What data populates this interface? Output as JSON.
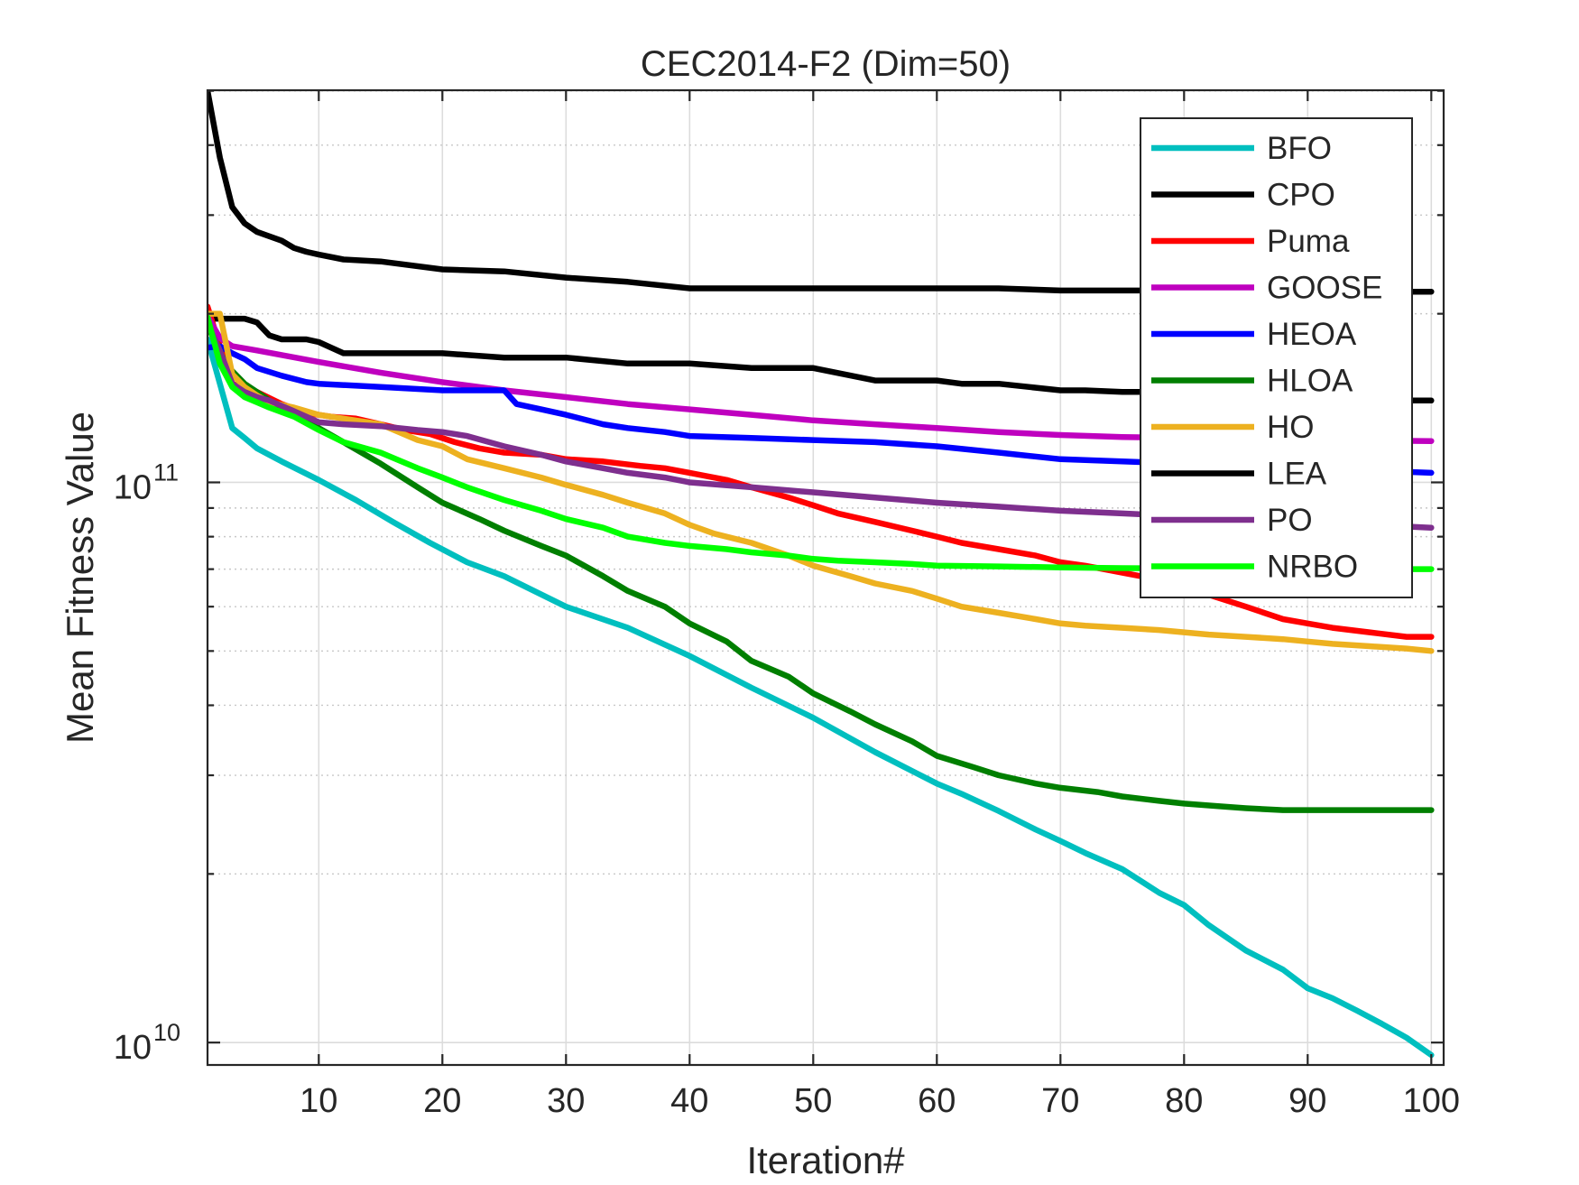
{
  "chart_data": {
    "type": "line",
    "title": "CEC2014-F2 (Dim=50)",
    "xlabel": "Iteration#",
    "ylabel": "Mean Fitness Value",
    "xscale": "linear",
    "yscale": "log",
    "xlim": [
      1,
      101
    ],
    "ylim_exp": [
      9.96,
      11.7
    ],
    "xticks": [
      10,
      20,
      30,
      40,
      50,
      60,
      70,
      80,
      90,
      100
    ],
    "xtick_labels": [
      "10",
      "20",
      "30",
      "40",
      "50",
      "60",
      "70",
      "80",
      "90",
      "100"
    ],
    "yticks_exp": [
      10,
      11
    ],
    "ytick_base": "10",
    "ytick_exponents": [
      "10",
      "11"
    ],
    "grid": true,
    "legend_position": "top-right",
    "series": [
      {
        "name": "BFO",
        "color": "#00bfbf",
        "x": [
          1,
          3,
          4,
          5,
          7,
          10,
          13,
          16,
          19,
          22,
          25,
          30,
          35,
          40,
          45,
          50,
          55,
          60,
          62,
          65,
          68,
          70,
          72,
          75,
          78,
          80,
          82,
          85,
          88,
          90,
          92,
          94,
          96,
          98,
          100
        ],
        "y": [
          180000000000,
          125000000000,
          120000000000,
          115000000000,
          109000000000,
          101000000000,
          93000000000,
          85000000000,
          78000000000,
          72000000000,
          68000000000,
          60000000000,
          55000000000,
          49000000000,
          43000000000,
          38000000000,
          33000000000,
          29000000000,
          27800000000,
          25900000000,
          24000000000,
          22900000000,
          21800000000,
          20400000000,
          18500000000,
          17600000000,
          16200000000,
          14600000000,
          13500000000,
          12500000000,
          12000000000,
          11400000000,
          10800000000,
          10200000000,
          9500000000
        ]
      },
      {
        "name": "CPO",
        "color": "#000000",
        "x": [
          1,
          2,
          3,
          4,
          5,
          6,
          7,
          8,
          9,
          10,
          12,
          15,
          20,
          25,
          30,
          35,
          40,
          45,
          50,
          55,
          60,
          62,
          65,
          70,
          72,
          75,
          80,
          85,
          90,
          95,
          98,
          100
        ],
        "y": [
          196000000000,
          196000000000,
          196000000000,
          196000000000,
          193000000000,
          183000000000,
          180000000000,
          180000000000,
          180000000000,
          178000000000,
          170000000000,
          170000000000,
          170000000000,
          167000000000,
          167000000000,
          163000000000,
          163000000000,
          160000000000,
          160000000000,
          152000000000,
          152000000000,
          150000000000,
          150000000000,
          146000000000,
          146000000000,
          145000000000,
          145000000000,
          145000000000,
          140000000000,
          140000000000,
          140000000000,
          140000000000
        ]
      },
      {
        "name": "Puma",
        "color": "#ff0000",
        "x": [
          1,
          2,
          3,
          4,
          5,
          7,
          9,
          11,
          13,
          15,
          17,
          19,
          21,
          23,
          25,
          28,
          30,
          33,
          36,
          38,
          40,
          43,
          45,
          48,
          50,
          52,
          55,
          58,
          60,
          62,
          65,
          68,
          70,
          72,
          75,
          78,
          80,
          82,
          85,
          88,
          90,
          92,
          95,
          98,
          100
        ],
        "y": [
          206000000000,
          175000000000,
          150000000000,
          147000000000,
          145000000000,
          138000000000,
          133000000000,
          131000000000,
          130000000000,
          127000000000,
          124000000000,
          122000000000,
          118000000000,
          115000000000,
          113000000000,
          112000000000,
          110000000000,
          109000000000,
          107000000000,
          106000000000,
          104000000000,
          101000000000,
          98000000000,
          94000000000,
          91000000000,
          88000000000,
          85000000000,
          82000000000,
          80000000000,
          78000000000,
          76000000000,
          74000000000,
          72000000000,
          71000000000,
          69000000000,
          67000000000,
          65000000000,
          63000000000,
          60000000000,
          57000000000,
          56000000000,
          55000000000,
          54000000000,
          53000000000,
          53000000000
        ]
      },
      {
        "name": "GOOSE",
        "color": "#bf00bf",
        "x": [
          1,
          2,
          3,
          5,
          10,
          15,
          20,
          25,
          30,
          35,
          40,
          45,
          50,
          55,
          60,
          65,
          70,
          75,
          80,
          85,
          90,
          95,
          100
        ],
        "y": [
          198000000000,
          181000000000,
          175000000000,
          172000000000,
          164000000000,
          157000000000,
          151000000000,
          146000000000,
          142000000000,
          138000000000,
          135000000000,
          132000000000,
          129000000000,
          127000000000,
          125000000000,
          123000000000,
          121500000000,
          120500000000,
          120000000000,
          119500000000,
          119000000000,
          118800000000,
          118500000000
        ]
      },
      {
        "name": "HEOA",
        "color": "#0000ff",
        "x": [
          1,
          2,
          3,
          4,
          5,
          7,
          9,
          10,
          15,
          20,
          25,
          26,
          28,
          30,
          33,
          35,
          38,
          40,
          45,
          50,
          55,
          60,
          65,
          70,
          75,
          80,
          85,
          90,
          95,
          100
        ],
        "y": [
          174000000000,
          175000000000,
          170000000000,
          166000000000,
          160000000000,
          155000000000,
          151000000000,
          150000000000,
          148000000000,
          146000000000,
          146000000000,
          138000000000,
          135000000000,
          132000000000,
          127000000000,
          125000000000,
          123000000000,
          121000000000,
          120000000000,
          119000000000,
          118000000000,
          116000000000,
          113000000000,
          110000000000,
          109000000000,
          108000000000,
          107000000000,
          106000000000,
          105000000000,
          104000000000
        ]
      },
      {
        "name": "HLOA",
        "color": "#007f00",
        "x": [
          1,
          2,
          3,
          4,
          5,
          6,
          8,
          10,
          12,
          15,
          18,
          20,
          23,
          25,
          28,
          30,
          33,
          35,
          38,
          40,
          43,
          45,
          48,
          50,
          53,
          55,
          58,
          60,
          63,
          65,
          68,
          70,
          73,
          75,
          78,
          80,
          83,
          85,
          88,
          90,
          95,
          100
        ],
        "y": [
          191000000000,
          170000000000,
          158000000000,
          150000000000,
          145000000000,
          140000000000,
          132000000000,
          125000000000,
          118000000000,
          108000000000,
          98000000000,
          92000000000,
          86000000000,
          82000000000,
          77000000000,
          74000000000,
          68000000000,
          64000000000,
          60000000000,
          56000000000,
          52000000000,
          48000000000,
          45000000000,
          42000000000,
          39000000000,
          37000000000,
          34500000000,
          32500000000,
          31000000000,
          30000000000,
          29000000000,
          28500000000,
          28000000000,
          27500000000,
          27000000000,
          26700000000,
          26400000000,
          26200000000,
          26000000000,
          26000000000,
          26000000000,
          26000000000
        ]
      },
      {
        "name": "HO",
        "color": "#edb120",
        "x": [
          1,
          2,
          3,
          4,
          5,
          6,
          8,
          10,
          12,
          15,
          18,
          20,
          22,
          25,
          28,
          30,
          33,
          35,
          38,
          40,
          42,
          45,
          48,
          50,
          53,
          55,
          58,
          60,
          62,
          65,
          68,
          70,
          72,
          75,
          78,
          80,
          82,
          85,
          88,
          90,
          92,
          95,
          98,
          100
        ],
        "y": [
          200000000000,
          200000000000,
          156000000000,
          148000000000,
          143000000000,
          139000000000,
          136000000000,
          132000000000,
          130000000000,
          127000000000,
          119000000000,
          116000000000,
          110000000000,
          106000000000,
          102000000000,
          99000000000,
          95000000000,
          92000000000,
          88000000000,
          84000000000,
          81000000000,
          78000000000,
          74000000000,
          71000000000,
          68000000000,
          66000000000,
          64000000000,
          62000000000,
          60000000000,
          58500000000,
          57000000000,
          56000000000,
          55500000000,
          55000000000,
          54500000000,
          54000000000,
          53500000000,
          53000000000,
          52500000000,
          52000000000,
          51500000000,
          51000000000,
          50500000000,
          50000000000
        ]
      },
      {
        "name": "LEA",
        "color": "#000000",
        "x": [
          1,
          2,
          3,
          4,
          5,
          6,
          7,
          8,
          9,
          10,
          12,
          15,
          20,
          25,
          30,
          35,
          40,
          45,
          50,
          55,
          60,
          65,
          70,
          75,
          80,
          85,
          90,
          95,
          98,
          100
        ],
        "y": [
          500000000000,
          380000000000,
          310000000000,
          290000000000,
          280000000000,
          275000000000,
          270000000000,
          262000000000,
          258000000000,
          255000000000,
          250000000000,
          248000000000,
          240000000000,
          238000000000,
          232000000000,
          228000000000,
          222000000000,
          222000000000,
          222000000000,
          222000000000,
          222000000000,
          222000000000,
          220000000000,
          220000000000,
          220000000000,
          220000000000,
          219000000000,
          219000000000,
          219000000000,
          219000000000
        ]
      },
      {
        "name": "PO",
        "color": "#7e2f8e",
        "x": [
          1,
          2,
          3,
          4,
          5,
          6,
          8,
          10,
          12,
          15,
          18,
          20,
          22,
          25,
          28,
          30,
          33,
          35,
          38,
          40,
          45,
          50,
          55,
          60,
          65,
          70,
          75,
          80,
          85,
          90,
          95,
          100
        ],
        "y": [
          192000000000,
          172000000000,
          150000000000,
          145000000000,
          142000000000,
          140000000000,
          134000000000,
          128000000000,
          127000000000,
          126000000000,
          124000000000,
          123000000000,
          121000000000,
          116000000000,
          112000000000,
          109000000000,
          106000000000,
          104000000000,
          102000000000,
          100000000000,
          98000000000,
          96000000000,
          94000000000,
          92000000000,
          90500000000,
          89000000000,
          88000000000,
          87000000000,
          86000000000,
          85000000000,
          84000000000,
          83000000000
        ]
      },
      {
        "name": "NRBO",
        "color": "#00ff00",
        "x": [
          1,
          2,
          3,
          4,
          5,
          6,
          8,
          10,
          12,
          15,
          18,
          20,
          22,
          25,
          28,
          30,
          33,
          35,
          38,
          40,
          43,
          45,
          48,
          50,
          52,
          55,
          58,
          60,
          65,
          70,
          75,
          80,
          85,
          90,
          95,
          100
        ],
        "y": [
          197000000000,
          163000000000,
          148000000000,
          142000000000,
          139000000000,
          136000000000,
          131000000000,
          124000000000,
          118000000000,
          113000000000,
          106000000000,
          102000000000,
          98000000000,
          93000000000,
          89000000000,
          86000000000,
          83000000000,
          80000000000,
          78000000000,
          77000000000,
          76000000000,
          75000000000,
          74000000000,
          73000000000,
          72500000000,
          72000000000,
          71500000000,
          71000000000,
          70800000000,
          70500000000,
          70300000000,
          70200000000,
          70100000000,
          70000000000,
          70000000000,
          70000000000
        ]
      }
    ]
  }
}
